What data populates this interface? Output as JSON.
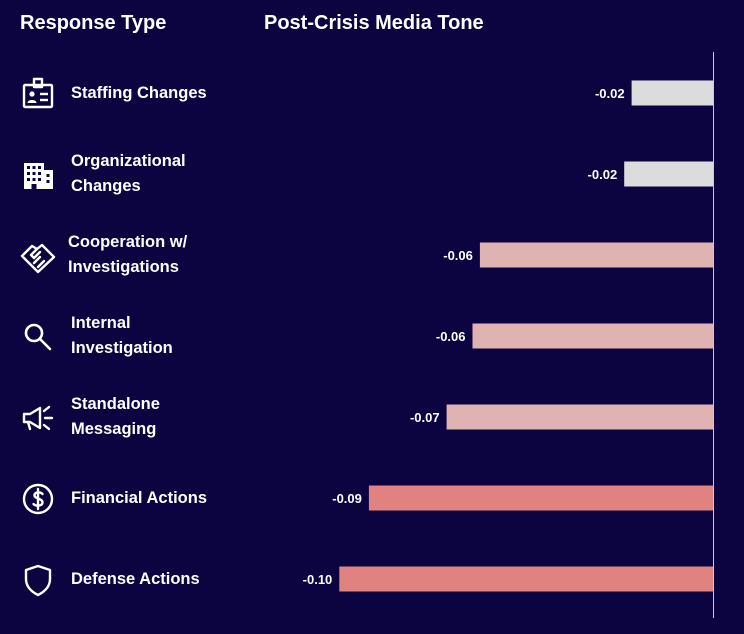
{
  "headers": {
    "left": "Response Type",
    "right": "Post-Crisis Media Tone"
  },
  "rows": [
    {
      "label": "Staffing Changes",
      "icon": "id-badge-icon"
    },
    {
      "label": "Organizational\nChanges",
      "icon": "building-icon"
    },
    {
      "label": "Cooperation w/\nInvestigations",
      "icon": "handshake-icon"
    },
    {
      "label": "Internal\nInvestigation",
      "icon": "search-icon"
    },
    {
      "label": "Standalone\nMessaging",
      "icon": "megaphone-icon"
    },
    {
      "label": "Financial Actions",
      "icon": "dollar-icon"
    },
    {
      "label": "Defense Actions",
      "icon": "shield-icon"
    }
  ],
  "colors": {
    "background": "#0b0440",
    "near_zero": "#dcdcdc",
    "medium": "#dfb3b1",
    "strong": "#e08380",
    "axis": "#c9c9d6"
  },
  "chart_data": {
    "type": "bar",
    "orientation": "horizontal",
    "title": "Post-Crisis Media Tone",
    "categories": [
      "Staffing Changes",
      "Organizational Changes",
      "Cooperation w/ Investigations",
      "Internal Investigation",
      "Standalone Messaging",
      "Financial Actions",
      "Defense Actions"
    ],
    "values": [
      -0.022,
      -0.024,
      -0.063,
      -0.065,
      -0.072,
      -0.093,
      -0.101
    ],
    "value_labels": [
      "-0.02",
      "-0.02",
      "-0.06",
      "-0.06",
      "-0.07",
      "-0.09",
      "-0.10"
    ],
    "xlim": [
      -0.105,
      0
    ],
    "grid": false,
    "legend": "none"
  }
}
